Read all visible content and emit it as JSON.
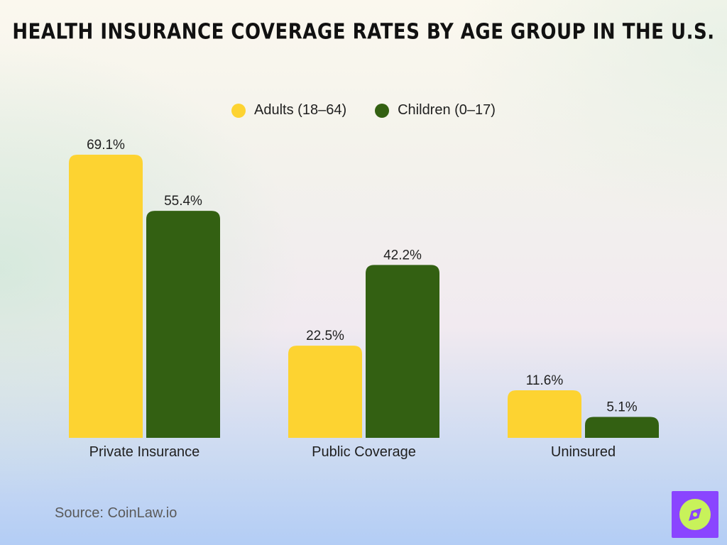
{
  "title": "Health Insurance Coverage Rates by Age Group in the U.S.",
  "source": "Source: CoinLaw.io",
  "colors": {
    "adults": "#fdd331",
    "children": "#336012"
  },
  "chart_data": {
    "type": "bar",
    "title": "Health Insurance Coverage Rates by Age Group in the U.S.",
    "xlabel": "",
    "ylabel": "",
    "categories": [
      "Private Insurance",
      "Public Coverage",
      "Uninsured"
    ],
    "series": [
      {
        "name": "Adults (18–64)",
        "values": [
          69.1,
          22.5,
          11.6
        ],
        "labels": [
          "69.1%",
          "22.5%",
          "11.6%"
        ]
      },
      {
        "name": "Children (0–17)",
        "values": [
          55.4,
          42.2,
          5.1
        ],
        "labels": [
          "55.4%",
          "42.2%",
          "5.1%"
        ]
      }
    ],
    "ylim": [
      0,
      69.1
    ],
    "grid": false,
    "legend": "top-center"
  }
}
